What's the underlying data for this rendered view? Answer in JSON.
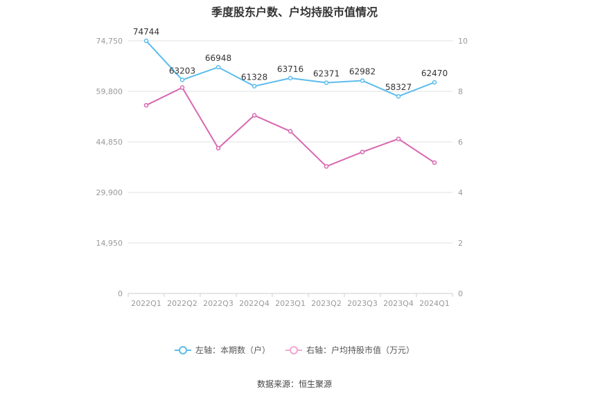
{
  "source_text": "数据来源：恒生聚源",
  "colors": {
    "left_series": "#5bbcec",
    "right_series": "#d966b0",
    "grid": "#e0e0e0",
    "axis_text": "#999999"
  },
  "chart_data": {
    "type": "line",
    "title": "季度股东户数、户均持股市值情况",
    "categories": [
      "2022Q1",
      "2022Q2",
      "2022Q3",
      "2022Q4",
      "2023Q1",
      "2023Q2",
      "2023Q3",
      "2023Q4",
      "2024Q1"
    ],
    "y_left": {
      "min": 0,
      "max": 74750,
      "ticks": [
        "0",
        "14,950",
        "29,900",
        "44,850",
        "59,800",
        "74,750"
      ]
    },
    "y_right": {
      "min": 0,
      "max": 10,
      "ticks": [
        "0",
        "2",
        "4",
        "6",
        "8",
        "10"
      ]
    },
    "grid": true,
    "legend_position": "bottom",
    "series": [
      {
        "name": "左轴：本期数（户）",
        "axis": "left",
        "data_labels": true,
        "values": [
          74744,
          63203,
          66948,
          61328,
          63716,
          62371,
          62982,
          58327,
          62470
        ]
      },
      {
        "name": "右轴：户均持股市值（万元）",
        "axis": "right",
        "data_labels": false,
        "values": [
          7.45,
          8.15,
          5.75,
          7.05,
          6.42,
          5.03,
          5.6,
          6.12,
          5.18
        ]
      }
    ]
  }
}
